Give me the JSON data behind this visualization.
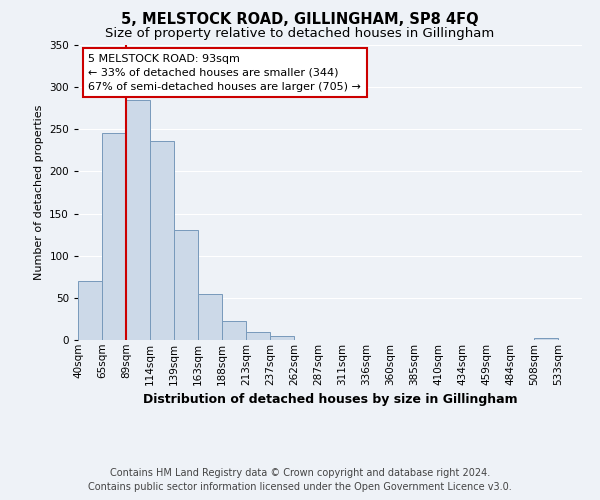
{
  "title": "5, MELSTOCK ROAD, GILLINGHAM, SP8 4FQ",
  "subtitle": "Size of property relative to detached houses in Gillingham",
  "xlabel": "Distribution of detached houses by size in Gillingham",
  "ylabel": "Number of detached properties",
  "bar_labels": [
    "40sqm",
    "65sqm",
    "89sqm",
    "114sqm",
    "139sqm",
    "163sqm",
    "188sqm",
    "213sqm",
    "237sqm",
    "262sqm",
    "287sqm",
    "311sqm",
    "336sqm",
    "360sqm",
    "385sqm",
    "410sqm",
    "434sqm",
    "459sqm",
    "484sqm",
    "508sqm",
    "533sqm"
  ],
  "bar_values": [
    70,
    246,
    285,
    236,
    130,
    54,
    22,
    10,
    5,
    0,
    0,
    0,
    0,
    0,
    0,
    0,
    0,
    0,
    0,
    2,
    0
  ],
  "bar_color": "#ccd9e8",
  "bar_edge_color": "#7799bb",
  "vline_color": "#cc0000",
  "vline_index": 2,
  "ylim": [
    0,
    350
  ],
  "yticks": [
    0,
    50,
    100,
    150,
    200,
    250,
    300,
    350
  ],
  "annotation_title": "5 MELSTOCK ROAD: 93sqm",
  "annotation_line1": "← 33% of detached houses are smaller (344)",
  "annotation_line2": "67% of semi-detached houses are larger (705) →",
  "annotation_box_color": "#ffffff",
  "annotation_border_color": "#cc0000",
  "footer1": "Contains HM Land Registry data © Crown copyright and database right 2024.",
  "footer2": "Contains public sector information licensed under the Open Government Licence v3.0.",
  "bg_color": "#eef2f7",
  "grid_color": "#ffffff",
  "title_fontsize": 10.5,
  "subtitle_fontsize": 9.5,
  "xlabel_fontsize": 9,
  "ylabel_fontsize": 8,
  "tick_fontsize": 7.5,
  "annotation_fontsize": 8,
  "footer_fontsize": 7
}
